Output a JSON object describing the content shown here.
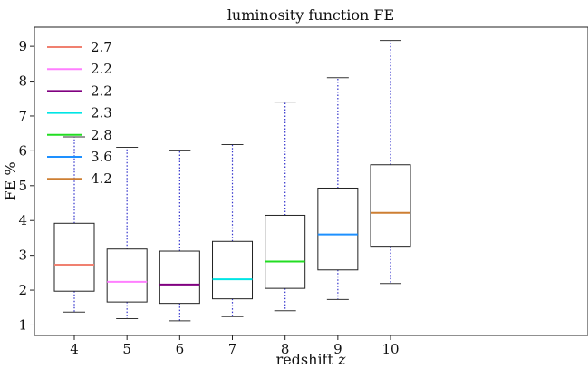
{
  "chart_data": {
    "type": "box",
    "title": "luminosity function FE",
    "xlabel": "redshift",
    "xlabel_var": "z",
    "ylabel": "FE %",
    "categories": [
      "4",
      "5",
      "6",
      "7",
      "8",
      "9",
      "10"
    ],
    "ylim": [
      0.7,
      9.55
    ],
    "yticks": [
      1,
      2,
      3,
      4,
      5,
      6,
      7,
      8,
      9
    ],
    "grid": false,
    "legend_position": "top-left",
    "whisker_color": "#3333cc",
    "series": [
      {
        "label": "2.7",
        "color": "#f08070",
        "whislo": 1.37,
        "q1": 1.97,
        "med": 2.73,
        "q3": 3.92,
        "whishi": 6.4
      },
      {
        "label": "2.2",
        "color": "#ff7fff",
        "whislo": 1.18,
        "q1": 1.66,
        "med": 2.24,
        "q3": 3.18,
        "whishi": 6.1
      },
      {
        "label": "2.2",
        "color": "#800080",
        "whislo": 1.12,
        "q1": 1.62,
        "med": 2.16,
        "q3": 3.12,
        "whishi": 6.02
      },
      {
        "label": "2.3",
        "color": "#00e5e5",
        "whislo": 1.24,
        "q1": 1.75,
        "med": 2.31,
        "q3": 3.4,
        "whishi": 6.18
      },
      {
        "label": "2.8",
        "color": "#22dd22",
        "whislo": 1.41,
        "q1": 2.05,
        "med": 2.82,
        "q3": 4.15,
        "whishi": 7.4
      },
      {
        "label": "3.6",
        "color": "#1e90ff",
        "whislo": 1.73,
        "q1": 2.58,
        "med": 3.6,
        "q3": 4.93,
        "whishi": 8.1
      },
      {
        "label": "4.2",
        "color": "#cd7f32",
        "whislo": 2.19,
        "q1": 3.26,
        "med": 4.22,
        "q3": 5.6,
        "whishi": 9.17
      }
    ]
  }
}
